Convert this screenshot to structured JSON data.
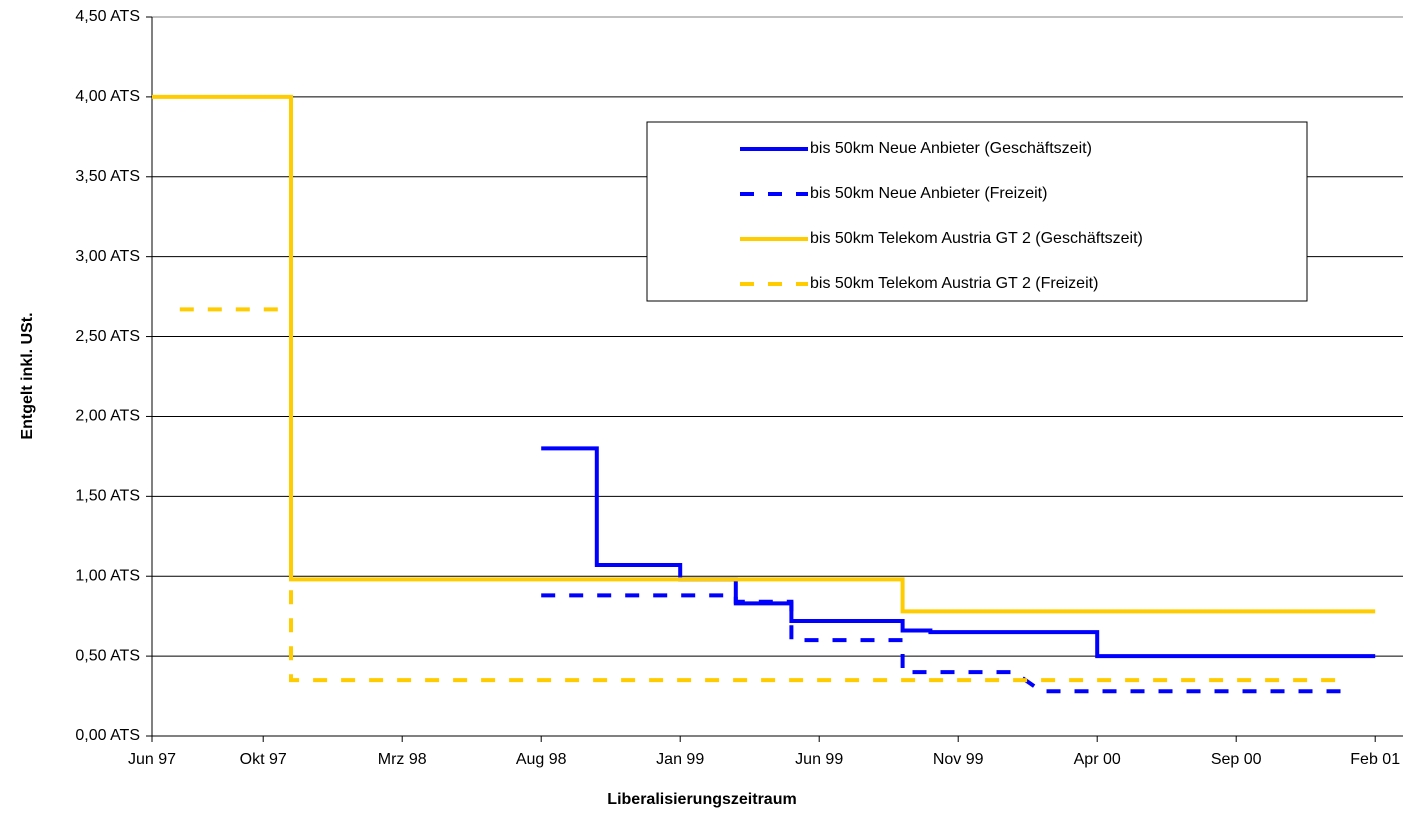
{
  "chart_data": {
    "type": "step-line",
    "xlabel": "Liberalisierungszeitraum",
    "ylabel": "Entgelt inkl. USt.",
    "xlim": [
      "1997-06",
      "2001-03"
    ],
    "xticks": [
      {
        "value": "1997-06",
        "label": "Jun 97"
      },
      {
        "value": "1997-10",
        "label": "Okt 97"
      },
      {
        "value": "1998-03",
        "label": "Mrz 98"
      },
      {
        "value": "1998-08",
        "label": "Aug 98"
      },
      {
        "value": "1999-01",
        "label": "Jan 99"
      },
      {
        "value": "1999-06",
        "label": "Jun 99"
      },
      {
        "value": "1999-11",
        "label": "Nov 99"
      },
      {
        "value": "2000-04",
        "label": "Apr 00"
      },
      {
        "value": "2000-09",
        "label": "Sep 00"
      },
      {
        "value": "2001-02",
        "label": "Feb 01"
      }
    ],
    "ylim": [
      0,
      4.5
    ],
    "yticks": [
      {
        "value": 0,
        "label": "0,00 ATS"
      },
      {
        "value": 0.5,
        "label": "0,50 ATS"
      },
      {
        "value": 1,
        "label": "1,00 ATS"
      },
      {
        "value": 1.5,
        "label": "1,50 ATS"
      },
      {
        "value": 2,
        "label": "2,00 ATS"
      },
      {
        "value": 2.5,
        "label": "2,50 ATS"
      },
      {
        "value": 3,
        "label": "3,00 ATS"
      },
      {
        "value": 3.5,
        "label": "3,50 ATS"
      },
      {
        "value": 4,
        "label": "4,00 ATS"
      },
      {
        "value": 4.5,
        "label": "4,50 ATS"
      }
    ],
    "grid": true,
    "legend": "upper right",
    "series": [
      {
        "name": "bis 50km Neue Anbieter (Geschäftszeit)",
        "color": "#0000ff",
        "dashed": false,
        "x": [
          "1998-08",
          "1998-10",
          "1998-10",
          "1999-01",
          "1999-01",
          "1999-03",
          "1999-03",
          "1999-05",
          "1999-05",
          "1999-09",
          "1999-09",
          "1999-10",
          "1999-10",
          "2000-04",
          "2000-04",
          "2001-02"
        ],
        "values": [
          1.8,
          1.8,
          1.07,
          1.07,
          0.98,
          0.98,
          0.83,
          0.83,
          0.72,
          0.72,
          0.66,
          0.66,
          0.65,
          0.65,
          0.5,
          0.5
        ]
      },
      {
        "name": "bis 50km Neue Anbieter (Freizeit)",
        "color": "#0000ff",
        "dashed": true,
        "x": [
          "1998-08",
          "1999-03",
          "1999-03",
          "1999-05",
          "1999-05",
          "1999-09",
          "1999-09",
          "2000-01",
          "2000-02",
          "2001-01"
        ],
        "values": [
          0.88,
          0.88,
          0.84,
          0.84,
          0.6,
          0.6,
          0.4,
          0.4,
          0.28,
          0.28
        ]
      },
      {
        "name": "bis 50km Telekom Austria GT 2 (Geschäftszeit)",
        "color": "#ffcc00",
        "dashed": false,
        "x": [
          "1997-06",
          "1997-11",
          "1997-11",
          "1999-09",
          "1999-09",
          "2001-02"
        ],
        "values": [
          4.0,
          4.0,
          0.98,
          0.98,
          0.78,
          0.78
        ]
      },
      {
        "name": "bis 50km Telekom Austria GT 2 (Freizeit)",
        "color": "#ffcc00",
        "dashed": true,
        "x": [
          "1997-07",
          "1997-11",
          "1997-11",
          "2001-01"
        ],
        "values": [
          2.67,
          2.67,
          0.35,
          0.35
        ]
      }
    ]
  }
}
